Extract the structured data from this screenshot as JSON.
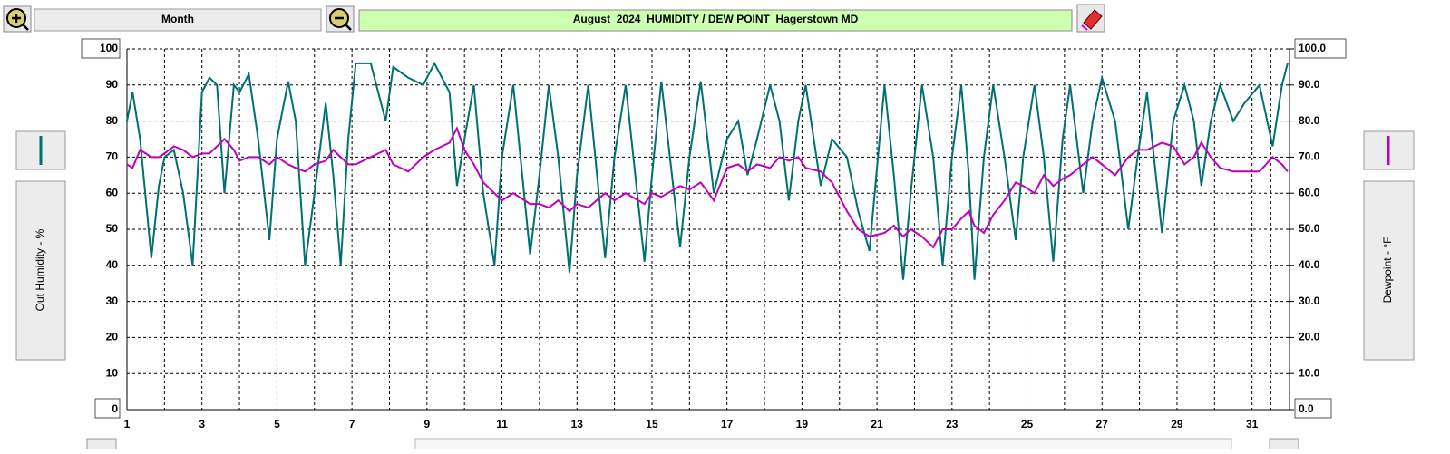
{
  "ui": {
    "zoom_mode": "Month"
  },
  "chart_data": {
    "type": "line",
    "title": "August  2024  HUMIDITY / DEW POINT  Hagerstown MD",
    "x": [
      1.0,
      1.15,
      1.35,
      1.65,
      1.85,
      2.0,
      2.25,
      2.5,
      2.75,
      3.0,
      3.2,
      3.4,
      3.6,
      3.85,
      4.0,
      4.25,
      4.5,
      4.8,
      5.0,
      5.3,
      5.5,
      5.75,
      6.0,
      6.3,
      6.5,
      6.7,
      6.9,
      7.1,
      7.5,
      7.9,
      8.1,
      8.5,
      8.9,
      9.2,
      9.6,
      9.8,
      10.0,
      10.25,
      10.5,
      10.8,
      11.0,
      11.3,
      11.75,
      12.0,
      12.25,
      12.5,
      12.8,
      13.0,
      13.3,
      13.75,
      14.0,
      14.3,
      14.8,
      15.0,
      15.25,
      15.75,
      16.0,
      16.3,
      16.65,
      17.0,
      17.3,
      17.55,
      17.8,
      18.15,
      18.4,
      18.65,
      18.9,
      19.1,
      19.5,
      19.8,
      20.2,
      20.5,
      20.8,
      21.2,
      21.45,
      21.7,
      21.9,
      22.2,
      22.5,
      22.75,
      23.0,
      23.25,
      23.45,
      23.6,
      23.85,
      24.1,
      24.4,
      24.7,
      24.9,
      25.2,
      25.45,
      25.7,
      25.95,
      26.15,
      26.5,
      26.75,
      27.0,
      27.35,
      27.7,
      27.95,
      28.2,
      28.6,
      28.9,
      29.2,
      29.45,
      29.65,
      29.9,
      30.15,
      30.5,
      30.8,
      31.2,
      31.55,
      31.8,
      31.95
    ],
    "series": [
      {
        "name": "Out Humidity - %",
        "color": "#007070",
        "axis": "y",
        "values": [
          80,
          88,
          75,
          42,
          62,
          70,
          72,
          60,
          40,
          88,
          92,
          90,
          60,
          90,
          88,
          93,
          75,
          47,
          75,
          91,
          80,
          40,
          60,
          85,
          65,
          40,
          75,
          96,
          96,
          80,
          95,
          92,
          90,
          96,
          88,
          62,
          75,
          90,
          60,
          40,
          70,
          90,
          43,
          65,
          90,
          70,
          38,
          65,
          90,
          42,
          70,
          90,
          41,
          65,
          91,
          45,
          70,
          91,
          60,
          75,
          80,
          65,
          75,
          90,
          80,
          58,
          80,
          90,
          62,
          75,
          70,
          55,
          44,
          90,
          65,
          36,
          60,
          90,
          70,
          40,
          70,
          90,
          65,
          36,
          70,
          90,
          70,
          47,
          70,
          90,
          70,
          41,
          75,
          90,
          60,
          80,
          92,
          80,
          50,
          70,
          88,
          49,
          80,
          90,
          80,
          62,
          80,
          90,
          80,
          85,
          90,
          73,
          90,
          96
        ]
      },
      {
        "name": "Dewpoint - °F",
        "color": "#c000c0",
        "axis": "y2",
        "values": [
          68,
          67,
          72,
          70,
          70,
          71,
          73,
          72,
          70,
          71,
          71,
          73,
          75,
          72,
          69,
          70,
          70,
          68,
          70,
          68,
          67,
          66,
          68,
          69,
          72,
          70,
          68,
          68,
          70,
          72,
          68,
          66,
          70,
          72,
          74,
          78,
          72,
          68,
          63,
          60,
          58,
          60,
          57,
          57,
          56,
          58,
          55,
          57,
          56,
          60,
          58,
          60,
          57,
          60,
          59,
          62,
          61,
          63,
          58,
          67,
          68,
          66,
          68,
          67,
          70,
          69,
          70,
          67,
          66,
          63,
          55,
          50,
          48,
          49,
          51,
          48,
          50,
          48,
          45,
          50,
          50,
          53,
          55,
          51,
          49,
          54,
          58,
          63,
          62,
          60,
          65,
          62,
          64,
          65,
          68,
          70,
          68,
          65,
          70,
          72,
          72,
          74,
          73,
          68,
          70,
          74,
          70,
          67,
          66,
          66,
          66,
          70,
          68,
          66
        ]
      }
    ],
    "xlim": [
      1,
      32
    ],
    "xticks": [
      1,
      3,
      5,
      7,
      9,
      11,
      13,
      15,
      17,
      19,
      21,
      23,
      25,
      27,
      29,
      31
    ],
    "ylim": [
      0,
      100
    ],
    "yticks": [
      0,
      10,
      20,
      30,
      40,
      50,
      60,
      70,
      80,
      90,
      100
    ],
    "y2lim": [
      0,
      100
    ],
    "y2ticks": [
      {
        "value": 0,
        "label": "0.0"
      },
      {
        "value": 10,
        "label": "10.0"
      },
      {
        "value": 20,
        "label": "20.0"
      },
      {
        "value": 30,
        "label": "30.0"
      },
      {
        "value": 40,
        "label": "40.0"
      },
      {
        "value": 50,
        "label": "50.0"
      },
      {
        "value": 60,
        "label": "60.0"
      },
      {
        "value": 70,
        "label": "70.0"
      },
      {
        "value": 80,
        "label": "80.0"
      },
      {
        "value": 90,
        "label": "90.0"
      },
      {
        "value": 100,
        "label": "100.0"
      }
    ],
    "grid": true
  }
}
